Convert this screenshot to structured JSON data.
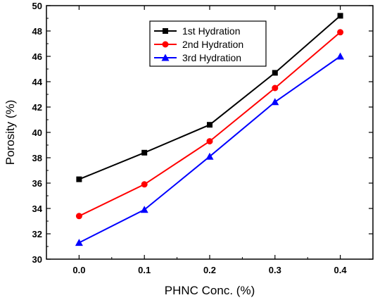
{
  "chart_data": {
    "type": "line",
    "title": "",
    "xlabel": "PHNC Conc. (%)",
    "ylabel": "Porosity (%)",
    "x": [
      0.0,
      0.1,
      0.2,
      0.3,
      0.4
    ],
    "x_tick_labels": [
      "0.0",
      "0.1",
      "0.2",
      "0.3",
      "0.4"
    ],
    "y_tick_labels": [
      "30",
      "32",
      "34",
      "36",
      "38",
      "40",
      "42",
      "44",
      "46",
      "48",
      "50"
    ],
    "xlim": [
      -0.05,
      0.45
    ],
    "ylim": [
      30,
      50
    ],
    "grid": false,
    "legend_position": "top-center",
    "series": [
      {
        "name": "1st Hydration",
        "color": "#000000",
        "marker": "square",
        "values": [
          36.3,
          38.4,
          40.6,
          44.7,
          49.2
        ]
      },
      {
        "name": "2nd Hydration",
        "color": "#ff0000",
        "marker": "circle",
        "values": [
          33.4,
          35.9,
          39.3,
          43.5,
          47.9
        ]
      },
      {
        "name": "3rd Hydration",
        "color": "#0000ff",
        "marker": "triangle",
        "values": [
          31.3,
          33.9,
          38.1,
          42.4,
          46.0
        ]
      }
    ]
  }
}
